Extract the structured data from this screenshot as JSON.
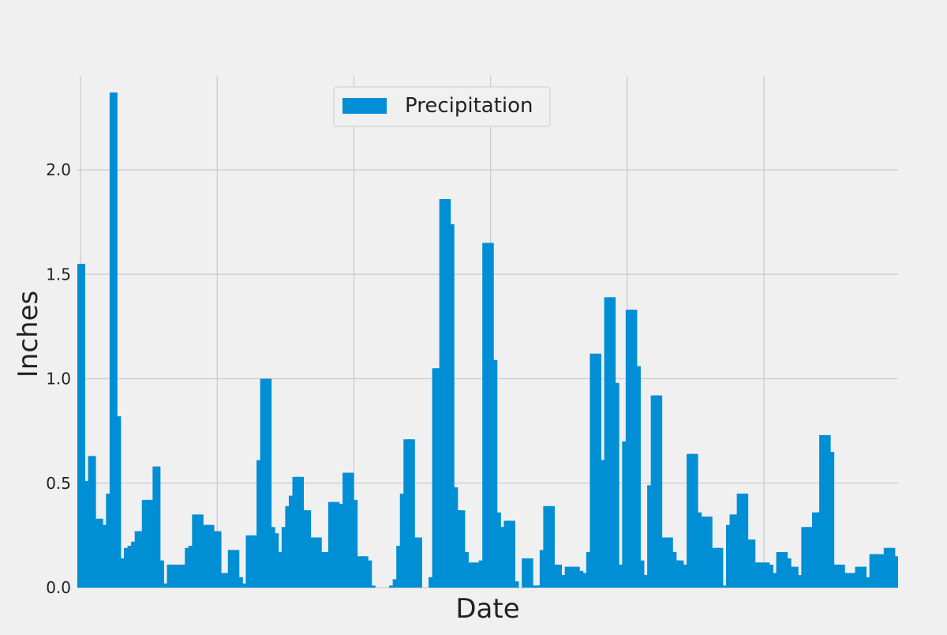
{
  "chart_data": {
    "type": "bar",
    "title": "",
    "xlabel": "Date",
    "ylabel": "Inches",
    "ylim": [
      0,
      2.45
    ],
    "yticks": [
      0.0,
      0.5,
      1.0,
      1.5,
      2.0
    ],
    "ytick_labels": [
      "0.0",
      "0.5",
      "1.0",
      "1.5",
      "2.0"
    ],
    "xtick_labels": [],
    "grid": true,
    "legend_position": "top-center",
    "colors": {
      "bar": "#008fd5",
      "background": "#f0f0f0",
      "grid": "#cbcbcb"
    },
    "series": [
      {
        "name": "Precipitation",
        "values": [
          1.55,
          0.51,
          0.51,
          0.63,
          0.27,
          0.33,
          0.27,
          0.3,
          0.45,
          2.37,
          0.82,
          0.13,
          0.14,
          0.19,
          0.2,
          0.22,
          0.27,
          0.27,
          0.42,
          0.42,
          0.24,
          0.58,
          0.13,
          0.02,
          0.0,
          0.11,
          0.11,
          0.06,
          0.11,
          0.11,
          0.19,
          0.2,
          0.35,
          0.35,
          0.15,
          0.3,
          0.3,
          0.27,
          0.27,
          0.03,
          0.07,
          0.07,
          0.18,
          0.18,
          0.05,
          0.0,
          0.02,
          0.25,
          0.25,
          0.23,
          0.61,
          1.0,
          1.0,
          0.29,
          0.26,
          0.11,
          0.17,
          0.29,
          0.39,
          0.44,
          0.53,
          0.53,
          0.37,
          0.37,
          0.12,
          0.24,
          0.24,
          0.17,
          0.17,
          0.17,
          0.41,
          0.41,
          0.4,
          0.4,
          0.55,
          0.55,
          0.42,
          0.06,
          0.15,
          0.15,
          0.13,
          0.01,
          0.0,
          0.0,
          0.0,
          0.0,
          0.0,
          0.01,
          0.04,
          0.2,
          0.45,
          0.71,
          0.71,
          0.24,
          0.24,
          0.0,
          0.0,
          0.0,
          0.05,
          1.05,
          1.05,
          1.86,
          1.86,
          1.74,
          0.48,
          0.37,
          0.37,
          0.17,
          0.03,
          0.12,
          0.12,
          0.03,
          0.13,
          1.65,
          1.65,
          1.09,
          0.36,
          0.29,
          0.29,
          0.32,
          0.32,
          0.03,
          0.0,
          0.0,
          0.14,
          0.14,
          0.0,
          0.01,
          0.01,
          0.18,
          0.39,
          0.39,
          0.11,
          0.11,
          0.06,
          0.06,
          0.1,
          0.1,
          0.1,
          0.08,
          0.0,
          0.07,
          0.17,
          1.12,
          1.12,
          0.61,
          0.61,
          1.39,
          1.39,
          0.98,
          0.11,
          0.06,
          0.7,
          1.33,
          1.33,
          1.06,
          0.13,
          0.06,
          0.06,
          0.49,
          0.92,
          0.92,
          0.14,
          0.24,
          0.24,
          0.17,
          0.13,
          0.13,
          0.07,
          0.11,
          0.64,
          0.64,
          0.36,
          0.08,
          0.34,
          0.34,
          0.11,
          0.19,
          0.19,
          0.01,
          0.0,
          0.3,
          0.35,
          0.35,
          0.45,
          0.45,
          0.23,
          0.23,
          0.12,
          0.12,
          0.12,
          0.12,
          0.11,
          0.01,
          0.07,
          0.17,
          0.17,
          0.14,
          0.1,
          0.1,
          0.04,
          0.06,
          0.29,
          0.29,
          0.15,
          0.36,
          0.36,
          0.73,
          0.73,
          0.65,
          0.11,
          0.11,
          0.11,
          0.07,
          0.07,
          0.07,
          0.03,
          0.1,
          0.1,
          0.05,
          0.04,
          0.16,
          0.16,
          0.16,
          0.05,
          0.19,
          0.19,
          0.15,
          0.12
        ]
      }
    ]
  }
}
